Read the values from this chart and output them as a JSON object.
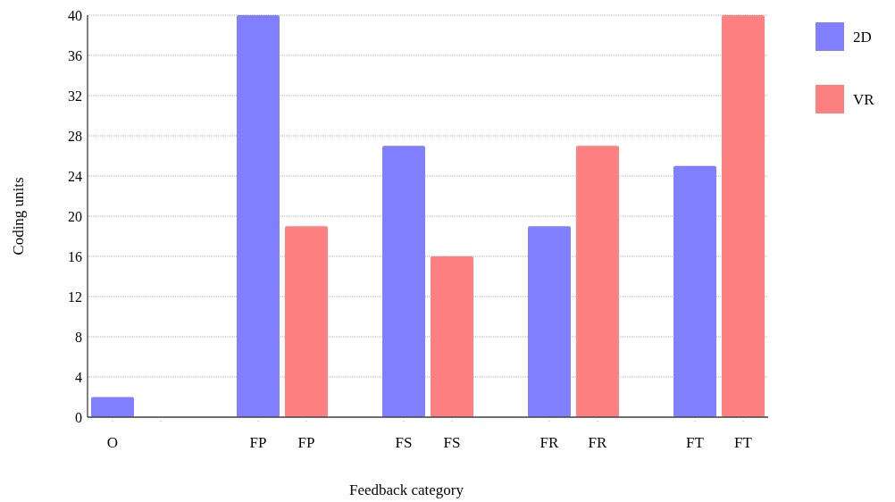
{
  "chart_data": {
    "type": "bar",
    "xlabel": "Feedback category",
    "ylabel": "Coding units",
    "categories": [
      "O",
      null,
      "FP",
      "FP",
      "FS",
      "FS",
      "FR",
      "FR",
      "FT",
      "FT"
    ],
    "series": [
      {
        "name": "2D",
        "color": "#8080ff",
        "values": [
          2,
          null,
          40,
          null,
          27,
          null,
          19,
          null,
          25,
          null
        ]
      },
      {
        "name": "VR",
        "color": "#ff8080",
        "values": [
          null,
          0,
          null,
          19,
          null,
          16,
          null,
          27,
          null,
          40
        ]
      }
    ],
    "ylim": [
      0,
      40
    ],
    "yticks": [
      0,
      4,
      8,
      12,
      16,
      20,
      24,
      28,
      32,
      36,
      40
    ],
    "grid": "y",
    "legend": "right"
  }
}
